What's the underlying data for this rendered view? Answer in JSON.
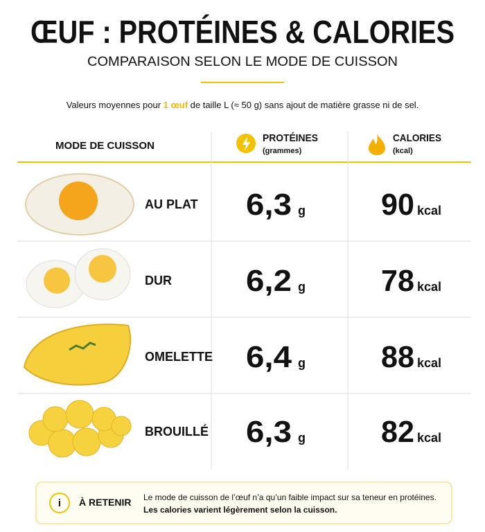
{
  "header": {
    "title": "ŒUF : PROTÉINES & CALORIES",
    "subtitle": "COMPARAISON SELON LE MODE DE CUISSON",
    "note": [
      "Valeurs moyennes pour ",
      "1 œuf",
      " de taille L (≈ 50 g) sans ajout de matière grasse ni de sel."
    ]
  },
  "table": {
    "columns": [
      {
        "title": "MODE DE CUISSON"
      },
      {
        "title": "PROTÉINES",
        "sub": "(grammes)"
      },
      {
        "title": "CALORIES",
        "sub": "(kcal)"
      }
    ],
    "rows": [
      {
        "mode": "AU PLAT",
        "proteins": "6,3",
        "protein_unit": "g",
        "calories": "90",
        "calorie_unit": "kcal"
      },
      {
        "mode": "DUR",
        "proteins": "6,2",
        "protein_unit": "g",
        "calories": "78",
        "calorie_unit": "kcal"
      },
      {
        "mode": "OMELETTE",
        "proteins": "6,4",
        "protein_unit": "g",
        "calories": "88",
        "calorie_unit": "kcal"
      },
      {
        "mode": "BROUILLÉ",
        "proteins": "6,3",
        "protein_unit": "g",
        "calories": "82",
        "calorie_unit": "kcal"
      }
    ]
  },
  "footer": {
    "label": "À RETENIR",
    "lines": [
      "Le mode de cuisson de l’œuf n’a qu’un faible impact sur sa teneur en protéines.",
      "Les calories varient légèrement selon la cuisson."
    ]
  }
}
